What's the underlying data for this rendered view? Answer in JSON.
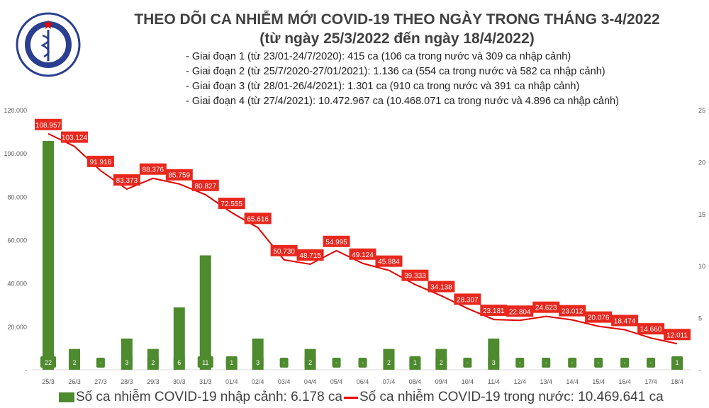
{
  "logo": {
    "text": "BỘ Y TẾ · MINISTRY OF HEALTH"
  },
  "title": "THEO DÕI CA NHIỄM MỚI COVID-19 THEO NGÀY TRONG THÁNG 3-4/2022",
  "subtitle": "(từ ngày 25/3/2022 đến ngày 18/4/2022)",
  "notes": [
    "- Giai đoạn 1 (từ 23/01-24/7/2020): 415 ca (106 ca trong nước và 309 ca nhập cảnh)",
    "- Giai đoạn 2 (từ 25/7/2020-27/01/2021): 1.136 ca (554 ca trong nước và 582 ca nhập cảnh)",
    "- Giai đoạn 3 (từ 28/01-26/4/2021): 1.301 ca (910 ca trong nước và 391 ca nhập cảnh)",
    "- Giai đoạn 4 (từ 27/4/2021): 10.472.967 ca (10.468.071 ca trong nước và 4.896 ca nhập cảnh)"
  ],
  "chart_data": {
    "type": "bar+line",
    "categories": [
      "25/3",
      "26/3",
      "27/3",
      "28/3",
      "29/3",
      "30/3",
      "31/3",
      "01/4",
      "02/4",
      "03/4",
      "04/4",
      "05/4",
      "06/4",
      "07/4",
      "08/4",
      "09/4",
      "10/4",
      "11/4",
      "12/4",
      "13/4",
      "14/4",
      "15/4",
      "16/4",
      "17/4",
      "18/4"
    ],
    "series": [
      {
        "name": "Số ca nhiễm COVID-19 nhập cảnh: 6.178 ca",
        "type": "bar",
        "axis": "right",
        "color": "#4e8a2e",
        "values": [
          22,
          2,
          0,
          3,
          2,
          6,
          11,
          1,
          3,
          0,
          2,
          0,
          0,
          2,
          1,
          2,
          0,
          3,
          0,
          0,
          0,
          0,
          0,
          0,
          1
        ],
        "labels": [
          "22",
          "2",
          "-",
          "3",
          "2",
          "6",
          "11",
          "1",
          "3",
          "-",
          "2",
          "-",
          "-",
          "2",
          "1",
          "2",
          "-",
          "3",
          "-",
          "-",
          "-",
          "-",
          "-",
          "-",
          "1"
        ]
      },
      {
        "name": "Số ca nhiễm COVID-19 trong nước: 10.469.641 ca",
        "type": "line",
        "axis": "left",
        "color": "#e00000",
        "values": [
          108957,
          103124,
          91916,
          83373,
          88376,
          85759,
          80827,
          72555,
          65616,
          50730,
          48715,
          54995,
          49124,
          45884,
          39333,
          34138,
          28307,
          23181,
          22804,
          24623,
          23012,
          20076,
          18474,
          14660,
          12011
        ],
        "labels": [
          "108.957",
          "103.124",
          "91.916",
          "83.373",
          "88.376",
          "85.759",
          "80.827",
          "72.555",
          "65.616",
          "50.730",
          "48.715",
          "54.995",
          "49.124",
          "45.884",
          "39.333",
          "34.138",
          "28.307",
          "23.181",
          "22.804",
          "24.623",
          "23.012",
          "20.076",
          "18.474",
          "14.660",
          "12.011"
        ]
      }
    ],
    "yleft": {
      "range": [
        0,
        120000
      ],
      "ticks": [
        "-",
        "20.000",
        "40.000",
        "60.000",
        "80.000",
        "100.000",
        "120.000"
      ]
    },
    "yright": {
      "range": [
        0,
        25
      ],
      "ticks": [
        "-",
        "5",
        "10",
        "15",
        "20",
        "25"
      ]
    },
    "grid": false,
    "legend": "bottom"
  }
}
